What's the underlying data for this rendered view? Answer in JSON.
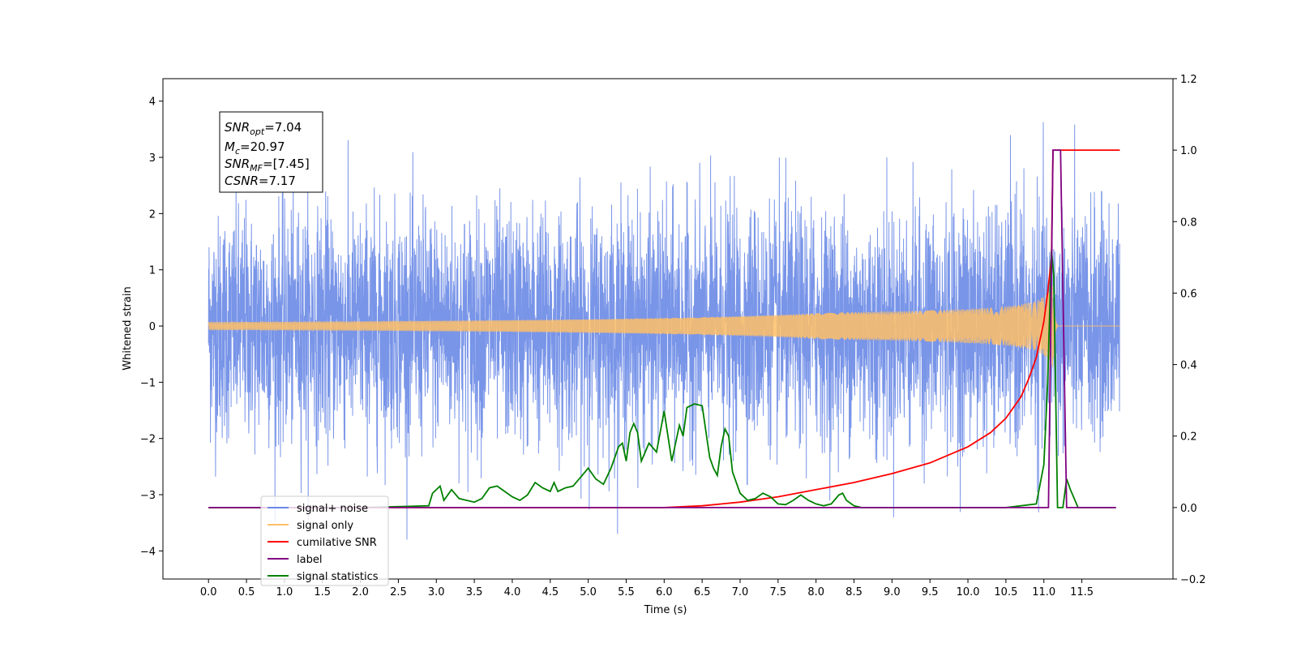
{
  "chart_data": {
    "type": "line",
    "xlabel": "Time (s)",
    "ylabel": "Whitened strain",
    "xlim": [
      -0.6,
      12.7
    ],
    "ylim_left": [
      -4.5,
      4.4
    ],
    "ylim_right": [
      -0.2,
      1.2
    ],
    "x_ticks": [
      "0.0",
      "0.5",
      "1.0",
      "1.5",
      "2.0",
      "2.5",
      "3.0",
      "3.5",
      "4.0",
      "4.5",
      "5.0",
      "5.5",
      "6.0",
      "6.5",
      "7.0",
      "7.5",
      "8.0",
      "8.5",
      "9.0",
      "9.5",
      "10.0",
      "10.5",
      "11.0",
      "11.5"
    ],
    "y_ticks_left": [
      "4",
      "3",
      "2",
      "1",
      "0",
      "−1",
      "−2",
      "−3",
      "−4"
    ],
    "y_ticks_right": [
      "1.2",
      "1.0",
      "0.8",
      "0.6",
      "0.4",
      "0.2",
      "0.0",
      "−0.2"
    ],
    "grid": false,
    "legend_position": "lower-left",
    "legend": [
      {
        "label": "signal+ noise",
        "color": "#6a89e6"
      },
      {
        "label": "signal only",
        "color": "#ffbf66"
      },
      {
        "label": "cumilative SNR",
        "color": "#ff0000"
      },
      {
        "label": "label",
        "color": "#800080"
      },
      {
        "label": "signal statistics",
        "color": "#008000"
      }
    ],
    "annotation": {
      "snr_opt": {
        "base": "SNR",
        "sub": "opt",
        "value": "=7.04"
      },
      "mc": {
        "base": "M",
        "sub": "c",
        "value": "=20.97"
      },
      "snr_mf": {
        "base": "SNR",
        "sub": "MF",
        "value": "=[7.45]"
      },
      "csnr": {
        "base": "CSNR",
        "value": "=7.17"
      }
    },
    "series": [
      {
        "name": "signal+ noise",
        "axis": "left",
        "kind": "noise",
        "x_range": [
          0.0,
          12.0
        ],
        "sigma": 1.0,
        "approx_min": -3.8,
        "approx_max": 3.95,
        "color": "#6a89e6"
      },
      {
        "name": "signal only",
        "axis": "left",
        "kind": "chirp",
        "x_range": [
          0.0,
          12.0
        ],
        "merger_time": 11.12,
        "peak_amplitude": 0.95,
        "color": "#ffbf66"
      },
      {
        "name": "cumilative SNR",
        "axis": "right",
        "x": [
          0.0,
          6.0,
          6.5,
          7.0,
          7.5,
          8.0,
          8.5,
          9.0,
          9.5,
          10.0,
          10.3,
          10.5,
          10.7,
          10.8,
          10.9,
          11.0,
          11.05,
          11.1,
          11.12,
          11.2,
          12.0
        ],
        "y": [
          0.0,
          0.0,
          0.005,
          0.015,
          0.03,
          0.05,
          0.07,
          0.095,
          0.125,
          0.17,
          0.21,
          0.25,
          0.31,
          0.36,
          0.42,
          0.52,
          0.6,
          0.7,
          1.0,
          1.0,
          1.0
        ],
        "color": "#ff0000"
      },
      {
        "name": "label",
        "axis": "right",
        "x": [
          0.0,
          11.06,
          11.12,
          11.22,
          11.3,
          11.95
        ],
        "y": [
          0.0,
          0.0,
          1.0,
          1.0,
          0.0,
          0.0
        ],
        "color": "#800080"
      },
      {
        "name": "signal statistics",
        "axis": "right",
        "x": [
          0.0,
          2.0,
          2.9,
          2.95,
          3.05,
          3.1,
          3.2,
          3.3,
          3.5,
          3.6,
          3.7,
          3.8,
          3.9,
          4.0,
          4.1,
          4.2,
          4.3,
          4.4,
          4.5,
          4.55,
          4.6,
          4.7,
          4.8,
          4.9,
          5.0,
          5.1,
          5.2,
          5.3,
          5.4,
          5.45,
          5.5,
          5.55,
          5.6,
          5.65,
          5.7,
          5.8,
          5.9,
          6.0,
          6.05,
          6.1,
          6.15,
          6.2,
          6.25,
          6.3,
          6.4,
          6.5,
          6.6,
          6.65,
          6.7,
          6.75,
          6.8,
          6.85,
          6.9,
          7.0,
          7.1,
          7.2,
          7.3,
          7.4,
          7.5,
          7.6,
          7.7,
          7.8,
          7.9,
          8.0,
          8.1,
          8.2,
          8.3,
          8.35,
          8.4,
          8.5,
          8.6,
          9.0,
          9.5,
          10.0,
          10.5,
          10.9,
          11.0,
          11.05,
          11.1,
          11.13,
          11.18,
          11.25,
          11.3,
          11.35,
          11.45,
          11.95
        ],
        "y": [
          0.0,
          0.0,
          0.005,
          0.04,
          0.06,
          0.02,
          0.05,
          0.025,
          0.015,
          0.025,
          0.055,
          0.06,
          0.045,
          0.03,
          0.02,
          0.035,
          0.07,
          0.055,
          0.045,
          0.07,
          0.045,
          0.055,
          0.06,
          0.085,
          0.11,
          0.08,
          0.065,
          0.11,
          0.17,
          0.18,
          0.13,
          0.21,
          0.235,
          0.21,
          0.13,
          0.18,
          0.155,
          0.27,
          0.2,
          0.13,
          0.18,
          0.23,
          0.2,
          0.28,
          0.29,
          0.285,
          0.14,
          0.11,
          0.09,
          0.17,
          0.22,
          0.2,
          0.1,
          0.04,
          0.02,
          0.025,
          0.04,
          0.03,
          0.01,
          0.008,
          0.02,
          0.035,
          0.02,
          0.01,
          0.005,
          0.01,
          0.035,
          0.04,
          0.02,
          0.005,
          0.0,
          0.0,
          0.0,
          0.0,
          0.0,
          0.01,
          0.12,
          0.35,
          0.72,
          0.65,
          0.0,
          0.0,
          0.08,
          0.05,
          0.0,
          0.0
        ],
        "color": "#008000"
      }
    ]
  }
}
